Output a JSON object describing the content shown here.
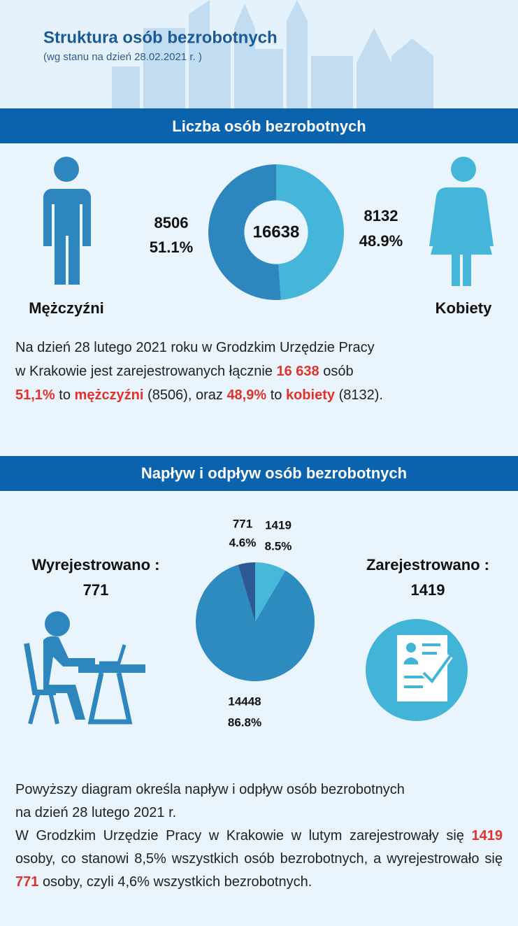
{
  "header": {
    "title": "Struktura osób bezrobotnych",
    "subtitle": "(wg stanu na dzień 28.02.2021 r. )"
  },
  "section1": {
    "title": "Liczba osób bezrobotnych",
    "chart": {
      "type": "donut",
      "total": 16638,
      "slices": [
        {
          "name": "Kobiety",
          "value": 8132,
          "label": "48.9%",
          "color": "#45b5d9"
        },
        {
          "name": "Mężczyźni",
          "value": 8506,
          "label": "51.1%",
          "color": "#2e86bf"
        }
      ]
    },
    "text": [
      "Na dzień 28 lutego 2021 roku w Grodzkim Urzędzie Pracy",
      "w Krakowie jest zarejestrowanych łącznie",
      "16 638",
      "osób",
      "51,1%",
      "to",
      "mężczyźni",
      "(8506), oraz",
      "48,9%",
      "to",
      "kobiety",
      "(8132)."
    ]
  },
  "section2": {
    "title": "Napływ i odpływ osób bezrobotnych",
    "left_label": "Wyrejestrowano :",
    "right_label": "Zarejestrowano :",
    "chart": {
      "type": "pie",
      "slices": [
        {
          "value": 1419,
          "label": "8.5%",
          "color": "#48b8da"
        },
        {
          "value": 14448,
          "label": "86.8%",
          "color": "#2e8bc0"
        },
        {
          "value": 771,
          "label": "4.6%",
          "color": "#2d5a94"
        }
      ]
    },
    "text": [
      "Powyższy diagram określa napływ i odpływ osób bezrobotnych",
      "na dzień 28 lutego 2021 r.",
      "W Grodzkim Urzędzie Pracy w Krakowie w lutym zarejestrowały się",
      "1419",
      "osoby, co stanowi 8,5% wszystkich osób bezrobotnych, a wyrejestrowało się",
      "771",
      "osoby, czyli 4,6% wszystkich bezrobotnych."
    ]
  }
}
